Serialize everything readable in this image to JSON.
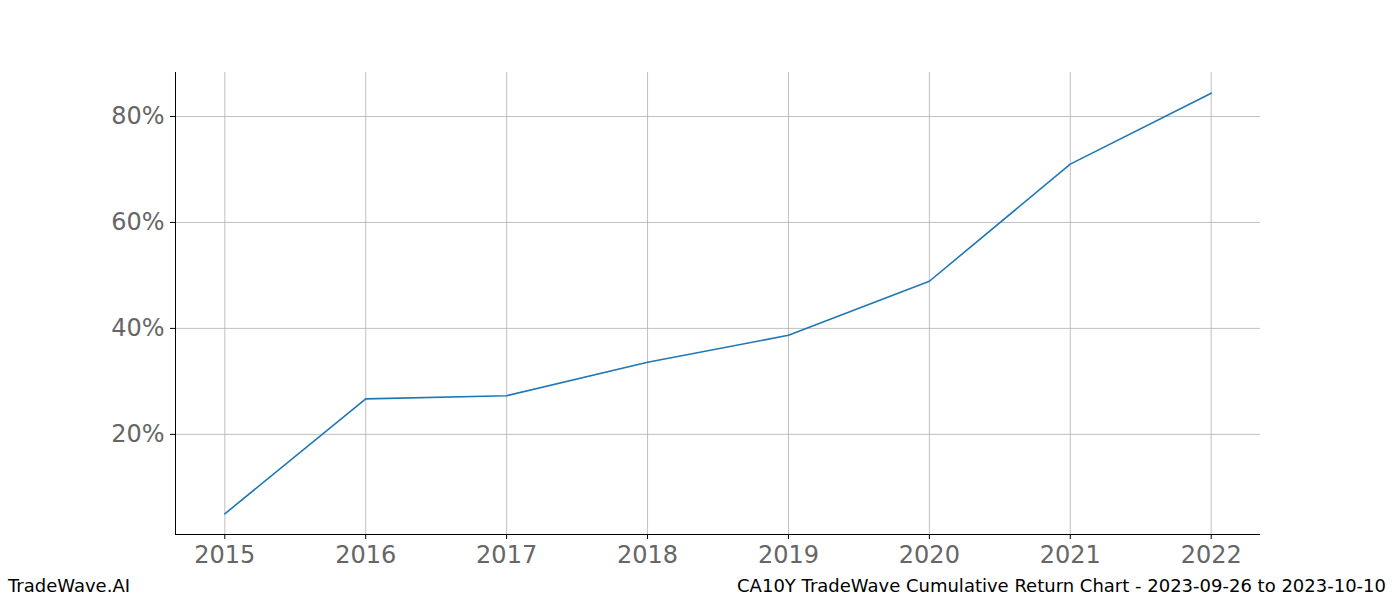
{
  "chart_data": {
    "type": "line",
    "title": "CA10Y TradeWave Cumulative Return Chart - 2023-09-26 to 2023-10-10",
    "source": "TradeWave.AI",
    "x": [
      2015,
      2016,
      2017,
      2018,
      2019,
      2020,
      2021,
      2022
    ],
    "values": [
      5.0,
      26.7,
      27.3,
      33.6,
      38.7,
      48.9,
      71.0,
      84.4
    ],
    "color": "#1f77b4",
    "xlim": [
      2014.65,
      2022.35
    ],
    "xticks": [
      2015,
      2016,
      2017,
      2018,
      2019,
      2020,
      2021,
      2022
    ],
    "ylim": [
      1.1,
      88.3
    ],
    "yticks": [
      {
        "value": 20,
        "label": "20%"
      },
      {
        "value": 40,
        "label": "40%"
      },
      {
        "value": 60,
        "label": "60%"
      },
      {
        "value": 80,
        "label": "80%"
      }
    ],
    "grid": true
  }
}
